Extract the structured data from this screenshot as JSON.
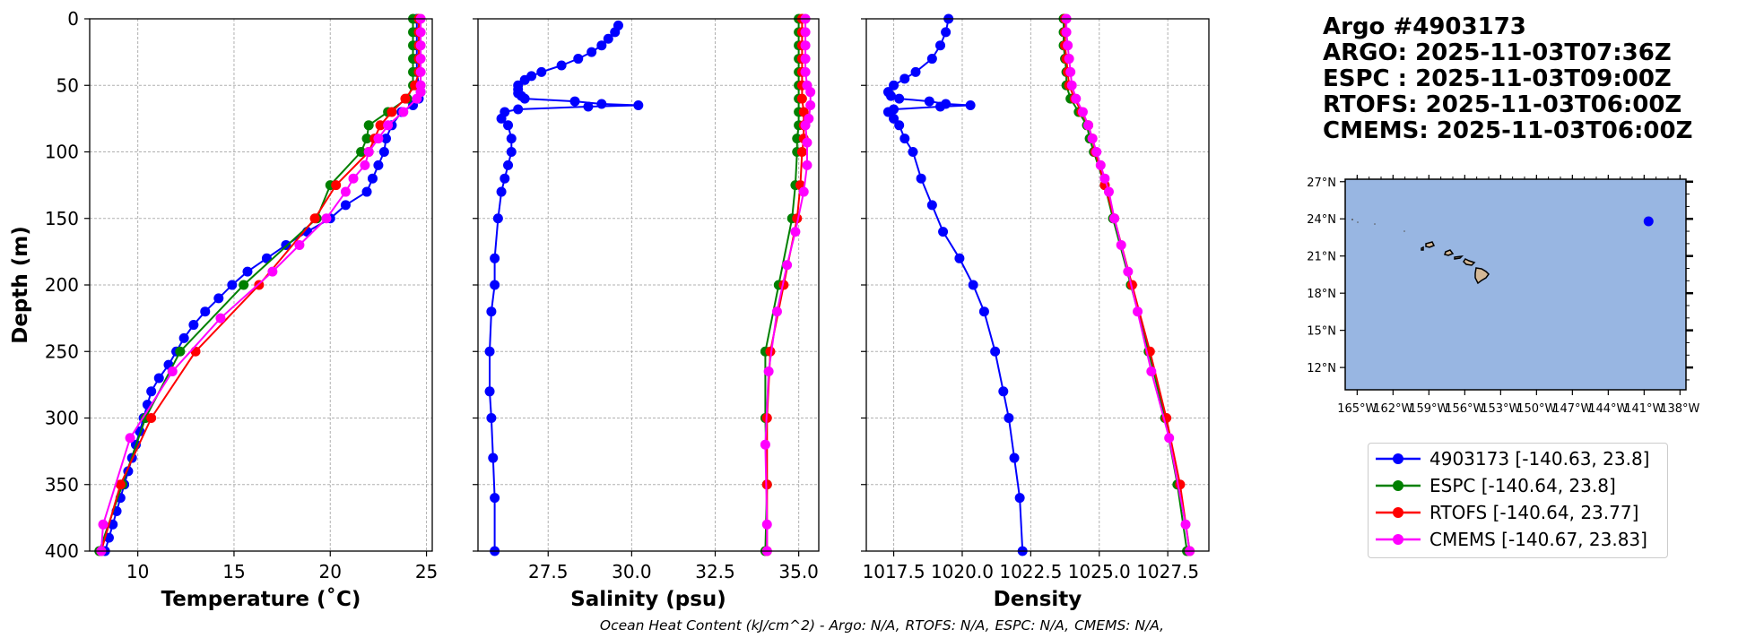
{
  "chart_data": [
    {
      "type": "line",
      "xlabel": "Temperature (˚C)",
      "ylabel": "Depth (m)",
      "xlim": [
        7.5,
        25.3
      ],
      "ylim": [
        400,
        0
      ],
      "xticks": [
        10,
        15,
        20,
        25
      ],
      "xtick_labels": [
        "10",
        "15",
        "20",
        "25"
      ],
      "yticks": [
        0,
        50,
        100,
        150,
        200,
        250,
        300,
        350,
        400
      ],
      "ytick_labels": [
        "0",
        "50",
        "100",
        "150",
        "200",
        "250",
        "300",
        "350",
        "400"
      ],
      "grid": true,
      "series": [
        {
          "name": "4903173",
          "color": "#0000ff",
          "depth": [
            0,
            10,
            20,
            30,
            40,
            50,
            55,
            60,
            65,
            70,
            80,
            90,
            100,
            110,
            120,
            130,
            140,
            150,
            160,
            170,
            180,
            190,
            200,
            210,
            220,
            230,
            240,
            250,
            260,
            270,
            280,
            290,
            300,
            310,
            320,
            330,
            340,
            350,
            360,
            370,
            380,
            390,
            400
          ],
          "values": [
            24.5,
            24.5,
            24.5,
            24.5,
            24.5,
            24.6,
            24.7,
            24.6,
            24.3,
            23.7,
            23.2,
            22.9,
            22.8,
            22.5,
            22.2,
            21.9,
            20.8,
            20.0,
            18.8,
            17.7,
            16.7,
            15.7,
            14.9,
            14.2,
            13.5,
            12.9,
            12.4,
            12.0,
            11.6,
            11.1,
            10.7,
            10.5,
            10.3,
            10.1,
            9.9,
            9.7,
            9.5,
            9.3,
            9.1,
            8.9,
            8.7,
            8.5,
            8.3
          ]
        },
        {
          "name": "ESPC",
          "color": "#008000",
          "depth": [
            0,
            10,
            20,
            30,
            40,
            50,
            60,
            70,
            80,
            90,
            100,
            125,
            150,
            200,
            250,
            300,
            350,
            400
          ],
          "values": [
            24.3,
            24.3,
            24.3,
            24.3,
            24.3,
            24.3,
            24.0,
            23.0,
            22.0,
            21.9,
            21.6,
            20.0,
            19.3,
            15.5,
            12.2,
            10.4,
            9.2,
            8.0
          ]
        },
        {
          "name": "RTOFS",
          "color": "#ff0000",
          "depth": [
            0,
            10,
            20,
            30,
            40,
            50,
            60,
            70,
            80,
            90,
            100,
            125,
            150,
            200,
            250,
            300,
            350,
            400
          ],
          "values": [
            24.6,
            24.6,
            24.6,
            24.6,
            24.6,
            24.4,
            23.9,
            23.2,
            22.6,
            22.3,
            22.0,
            20.3,
            19.2,
            16.3,
            13.0,
            10.7,
            9.1,
            8.1
          ]
        },
        {
          "name": "CMEMS",
          "color": "#ff00ff",
          "depth": [
            0,
            10,
            20,
            30,
            40,
            50,
            55,
            60,
            70,
            80,
            90,
            100,
            110,
            120,
            130,
            150,
            170,
            190,
            225,
            265,
            315,
            380,
            400
          ],
          "values": [
            24.7,
            24.7,
            24.7,
            24.7,
            24.7,
            24.7,
            24.7,
            24.5,
            23.8,
            23.0,
            22.5,
            22.0,
            21.8,
            21.2,
            20.8,
            19.8,
            18.4,
            17.0,
            14.3,
            11.8,
            9.6,
            8.2,
            8.1
          ]
        }
      ]
    },
    {
      "type": "line",
      "xlabel": "Salinity (psu)",
      "xlim": [
        25.4,
        35.6
      ],
      "ylim": [
        400,
        0
      ],
      "xticks": [
        27.5,
        30.0,
        32.5,
        35.0
      ],
      "xtick_labels": [
        "27.5",
        "30.0",
        "32.5",
        "35.0"
      ],
      "grid": true,
      "series": [
        {
          "name": "4903173",
          "color": "#0000ff",
          "depth": [
            5,
            10,
            15,
            20,
            25,
            30,
            35,
            40,
            43,
            46,
            50,
            53,
            56,
            58,
            60,
            62,
            64,
            65,
            66,
            68,
            70,
            75,
            80,
            90,
            100,
            110,
            120,
            130,
            150,
            180,
            200,
            220,
            250,
            280,
            300,
            330,
            360,
            400
          ],
          "values": [
            29.6,
            29.5,
            29.3,
            29.1,
            28.8,
            28.4,
            27.9,
            27.3,
            27.0,
            26.8,
            26.6,
            26.6,
            26.6,
            26.7,
            26.8,
            28.3,
            29.1,
            30.2,
            28.7,
            26.6,
            26.2,
            26.1,
            26.3,
            26.4,
            26.4,
            26.3,
            26.2,
            26.1,
            26.0,
            25.9,
            25.9,
            25.8,
            25.75,
            25.75,
            25.8,
            25.85,
            25.9,
            25.9
          ]
        },
        {
          "name": "ESPC",
          "color": "#008000",
          "depth": [
            0,
            10,
            20,
            30,
            40,
            50,
            60,
            70,
            80,
            90,
            100,
            125,
            150,
            200,
            250,
            300,
            350,
            400
          ],
          "values": [
            35.0,
            35.0,
            35.0,
            35.0,
            35.0,
            35.0,
            35.0,
            35.0,
            35.0,
            34.95,
            34.95,
            34.9,
            34.8,
            34.4,
            34.0,
            34.0,
            34.05,
            34.0
          ]
        },
        {
          "name": "RTOFS",
          "color": "#ff0000",
          "depth": [
            0,
            10,
            20,
            30,
            40,
            50,
            60,
            70,
            80,
            90,
            100,
            125,
            150,
            200,
            250,
            300,
            350,
            400
          ],
          "values": [
            35.1,
            35.1,
            35.1,
            35.1,
            35.1,
            35.1,
            35.1,
            35.15,
            35.15,
            35.15,
            35.1,
            35.05,
            34.95,
            34.55,
            34.15,
            34.05,
            34.05,
            34.05
          ]
        },
        {
          "name": "CMEMS",
          "color": "#ff00ff",
          "depth": [
            0,
            10,
            20,
            30,
            40,
            50,
            55,
            65,
            75,
            80,
            93,
            110,
            130,
            160,
            185,
            220,
            265,
            320,
            380,
            400
          ],
          "values": [
            35.2,
            35.2,
            35.2,
            35.2,
            35.2,
            35.25,
            35.35,
            35.35,
            35.3,
            35.2,
            35.25,
            35.25,
            35.15,
            34.9,
            34.65,
            34.35,
            34.1,
            34.0,
            34.05,
            34.05
          ]
        }
      ]
    },
    {
      "type": "line",
      "xlabel": "Density",
      "xlim": [
        1016.5,
        1029.0
      ],
      "ylim": [
        400,
        0
      ],
      "xticks": [
        1017.5,
        1020.0,
        1022.5,
        1025.0,
        1027.5
      ],
      "xtick_labels": [
        "1017.5",
        "1020.0",
        "1022.5",
        "1025.0",
        "1027.5"
      ],
      "grid": true,
      "series": [
        {
          "name": "4903173",
          "color": "#0000ff",
          "depth": [
            0,
            10,
            20,
            30,
            40,
            45,
            50,
            55,
            58,
            60,
            62,
            64,
            65,
            66,
            68,
            70,
            75,
            80,
            90,
            100,
            120,
            140,
            160,
            180,
            200,
            220,
            250,
            280,
            300,
            330,
            360,
            400
          ],
          "values": [
            1019.5,
            1019.4,
            1019.2,
            1018.9,
            1018.3,
            1017.9,
            1017.5,
            1017.3,
            1017.4,
            1017.7,
            1018.8,
            1019.4,
            1020.3,
            1019.2,
            1017.5,
            1017.3,
            1017.5,
            1017.7,
            1017.9,
            1018.2,
            1018.5,
            1018.9,
            1019.3,
            1019.9,
            1020.4,
            1020.8,
            1021.2,
            1021.5,
            1021.7,
            1021.9,
            1022.1,
            1022.2
          ]
        },
        {
          "name": "ESPC",
          "color": "#008000",
          "depth": [
            0,
            10,
            20,
            30,
            40,
            50,
            60,
            70,
            80,
            90,
            100,
            125,
            150,
            200,
            250,
            300,
            350,
            400
          ],
          "values": [
            1023.7,
            1023.7,
            1023.7,
            1023.75,
            1023.8,
            1023.8,
            1023.95,
            1024.25,
            1024.55,
            1024.65,
            1024.8,
            1025.2,
            1025.5,
            1026.15,
            1026.8,
            1027.4,
            1027.85,
            1028.2
          ]
        },
        {
          "name": "RTOFS",
          "color": "#ff0000",
          "depth": [
            0,
            10,
            20,
            30,
            40,
            50,
            60,
            70,
            80,
            90,
            100,
            125,
            150,
            200,
            250,
            300,
            350,
            400
          ],
          "values": [
            1023.75,
            1023.75,
            1023.75,
            1023.8,
            1023.85,
            1023.9,
            1024.1,
            1024.35,
            1024.6,
            1024.75,
            1024.85,
            1025.2,
            1025.55,
            1026.2,
            1026.85,
            1027.45,
            1027.95,
            1028.3
          ]
        },
        {
          "name": "CMEMS",
          "color": "#ff00ff",
          "depth": [
            0,
            10,
            20,
            30,
            40,
            50,
            60,
            70,
            80,
            90,
            100,
            110,
            120,
            130,
            150,
            170,
            190,
            220,
            265,
            315,
            380,
            400
          ],
          "values": [
            1023.8,
            1023.8,
            1023.85,
            1023.9,
            1023.95,
            1024.0,
            1024.15,
            1024.4,
            1024.6,
            1024.75,
            1024.9,
            1025.05,
            1025.2,
            1025.35,
            1025.55,
            1025.8,
            1026.05,
            1026.4,
            1026.9,
            1027.55,
            1028.15,
            1028.3
          ]
        }
      ]
    },
    {
      "type": "map",
      "lon_ticks": [
        "165°W",
        "162°W",
        "159°W",
        "156°W",
        "153°W",
        "150°W",
        "147°W",
        "144°W",
        "141°W",
        "138°W"
      ],
      "lat_ticks": [
        "27°N",
        "24°N",
        "21°N",
        "18°N",
        "15°N",
        "12°N"
      ],
      "lon_range": [
        -166,
        -137.5
      ],
      "lat_range": [
        10.2,
        27.2
      ],
      "ocean_color": "#98b6e2",
      "land_color": "#d4b896",
      "float_position": [
        -140.63,
        23.8
      ],
      "float_color": "#0000ff"
    }
  ],
  "header": {
    "line1": "Argo #4903173",
    "line2": "ARGO: 2025-11-03T07:36Z",
    "line3": "ESPC : 2025-11-03T09:00Z",
    "line4": "RTOFS: 2025-11-03T06:00Z",
    "line5": "CMEMS: 2025-11-03T06:00Z"
  },
  "legend": [
    {
      "label": "4903173 [-140.63, 23.8]",
      "color": "#0000ff"
    },
    {
      "label": "ESPC [-140.64, 23.8]",
      "color": "#008000"
    },
    {
      "label": "RTOFS [-140.64, 23.77]",
      "color": "#ff0000"
    },
    {
      "label": "CMEMS [-140.67, 23.83]",
      "color": "#ff00ff"
    }
  ],
  "caption": {
    "part1": "Ocean Heat Content (kJ/cm^2) - Argo: N/A,",
    "part2": "RTOFS: N/A,",
    "part3": "ESPC: N/A,",
    "part4": "CMEMS: N/A,"
  }
}
